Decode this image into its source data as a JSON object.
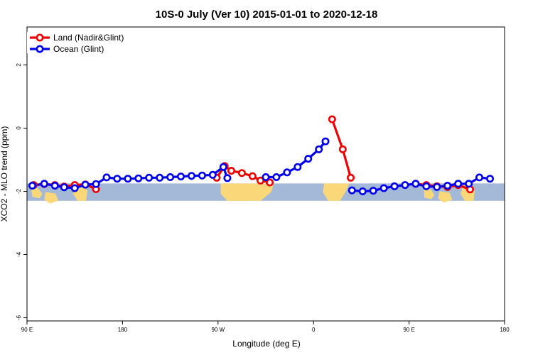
{
  "chart_data": {
    "type": "line",
    "title": "10S-0 July (Ver 10)   2015-01-01 to 2020-12-18",
    "xlabel": "Longitude (deg E)",
    "ylabel": "XCO2 - MLO trend (ppm)",
    "xlim": [
      90,
      450
    ],
    "ylim": [
      -6.1,
      3.2
    ],
    "grid": false,
    "legend_position": "top-left",
    "x_ticks": [
      {
        "value": 90,
        "label": "90 E"
      },
      {
        "value": 162,
        "label": "180"
      },
      {
        "value": 234,
        "label": "90 W"
      },
      {
        "value": 306,
        "label": "0"
      },
      {
        "value": 378,
        "label": "90 E"
      },
      {
        "value": 450,
        "label": "180"
      }
    ],
    "y_ticks": [
      {
        "value": 2,
        "label": "2"
      },
      {
        "value": 0,
        "label": "0"
      },
      {
        "value": -2,
        "label": "-2"
      },
      {
        "value": -4,
        "label": "-4"
      },
      {
        "value": -6,
        "label": "-6"
      }
    ],
    "background_band": {
      "y_range": [
        -2.3,
        -1.75
      ],
      "ocean_color": "#a4b8d8",
      "land_color": "#fad87a"
    },
    "series": [
      {
        "name": "Land (Nadir&Glint)",
        "color": "#ee0000",
        "segments": [
          {
            "x": [
              95,
              103,
              111,
              118,
              126,
              134,
              142
            ],
            "y": [
              -1.8,
              -1.77,
              -1.8,
              -1.85,
              -1.8,
              -1.78,
              -1.93
            ]
          },
          {
            "x": [
              233,
              239,
              244,
              252,
              260,
              266,
              273
            ],
            "y": [
              -1.57,
              -1.2,
              -1.35,
              -1.42,
              -1.52,
              -1.66,
              -1.72
            ]
          },
          {
            "x": [
              320,
              328,
              334
            ],
            "y": [
              0.28,
              -0.67,
              -1.57
            ]
          },
          {
            "x": [
              383,
              391,
              399,
              407,
              415,
              424
            ],
            "y": [
              -1.76,
              -1.8,
              -1.84,
              -1.86,
              -1.8,
              -1.94
            ]
          }
        ]
      },
      {
        "name": "Ocean (Glint)",
        "color": "#0000ee",
        "segments": [
          {
            "x": [
              94,
              103,
              111,
              118,
              126,
              134,
              142,
              150,
              158,
              166,
              174,
              182,
              190,
              198,
              206,
              214,
              222,
              230,
              238,
              241
            ],
            "y": [
              -1.82,
              -1.76,
              -1.82,
              -1.87,
              -1.9,
              -1.79,
              -1.77,
              -1.56,
              -1.6,
              -1.6,
              -1.59,
              -1.57,
              -1.57,
              -1.55,
              -1.53,
              -1.51,
              -1.5,
              -1.48,
              -1.23,
              -1.58
            ]
          },
          {
            "x": [
              270,
              278,
              286,
              294,
              302,
              310,
              315
            ],
            "y": [
              -1.55,
              -1.55,
              -1.4,
              -1.23,
              -0.97,
              -0.67,
              -0.42
            ]
          },
          {
            "x": [
              335,
              343,
              351,
              359,
              367,
              375,
              383,
              391,
              399,
              407,
              415,
              423,
              431,
              439
            ],
            "y": [
              -1.97,
              -2.0,
              -1.98,
              -1.9,
              -1.84,
              -1.8,
              -1.76,
              -1.84,
              -1.86,
              -1.82,
              -1.76,
              -1.76,
              -1.56,
              -1.6
            ]
          }
        ]
      }
    ]
  }
}
